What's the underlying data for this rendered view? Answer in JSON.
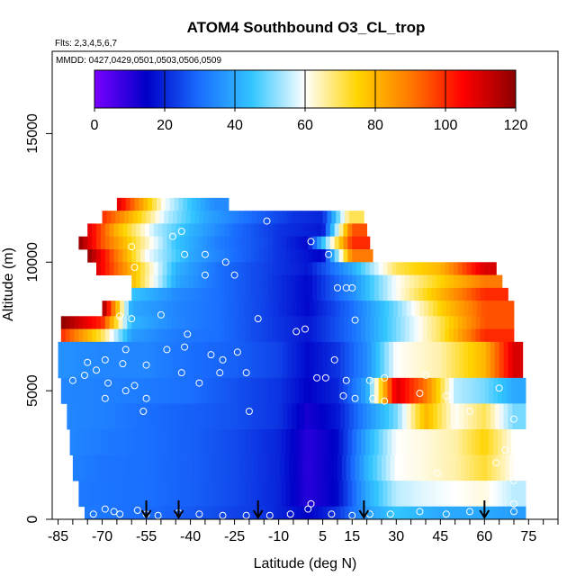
{
  "chart_data": {
    "type": "heatmap",
    "title": "ATOM4 Southbound O3_CL_trop",
    "flights_label": "Flts: 2,3,4,5,6,7",
    "dates_label": "MMDD: 0427,0429,0501,0503,0506,0509",
    "xlabel": "Latitude (deg N)",
    "ylabel": "Altitude (m)",
    "xlim": [
      -87,
      85
    ],
    "ylim": [
      0,
      18200
    ],
    "x_ticks": [
      -85,
      -70,
      -55,
      -40,
      -25,
      -10,
      5,
      15,
      30,
      45,
      60,
      75
    ],
    "y_ticks": [
      0,
      5000,
      10000,
      15000
    ],
    "colorbar": {
      "min": 0,
      "max": 120,
      "ticks": [
        0,
        20,
        40,
        60,
        80,
        100,
        120
      ],
      "colors": [
        "#7a00ff",
        "#0000c8",
        "#1a6fff",
        "#33c6ff",
        "#ffffff",
        "#ffd400",
        "#ff7a00",
        "#ff0000",
        "#8b0000"
      ]
    },
    "altitude_bands": [
      {
        "alt": [
          12000,
          12500
        ],
        "lat": [
          -65,
          -27
        ],
        "values": [
          [
            -65,
            110
          ],
          [
            -57,
            85
          ],
          [
            -49,
            60
          ],
          [
            -40,
            45
          ],
          [
            -32,
            35
          ]
        ]
      },
      {
        "alt": [
          11500,
          12000
        ],
        "lat": [
          -70,
          19
        ],
        "values": [
          [
            -70,
            100
          ],
          [
            -60,
            80
          ],
          [
            -48,
            55
          ],
          [
            -35,
            40
          ],
          [
            -20,
            30
          ],
          [
            -5,
            22
          ],
          [
            5,
            20
          ],
          [
            14,
            70
          ]
        ]
      },
      {
        "alt": [
          11000,
          11500
        ],
        "lat": [
          -75,
          20
        ],
        "values": [
          [
            -75,
            110
          ],
          [
            -65,
            80
          ],
          [
            -52,
            55
          ],
          [
            -40,
            42
          ],
          [
            -25,
            30
          ],
          [
            -10,
            22
          ],
          [
            5,
            18
          ],
          [
            15,
            95
          ]
        ]
      },
      {
        "alt": [
          10500,
          11000
        ],
        "lat": [
          -78,
          21
        ],
        "values": [
          [
            -78,
            120
          ],
          [
            -70,
            95
          ],
          [
            -58,
            70
          ],
          [
            -45,
            45
          ],
          [
            -30,
            32
          ],
          [
            -15,
            25
          ],
          [
            0,
            16
          ],
          [
            15,
            100
          ]
        ]
      },
      {
        "alt": [
          10000,
          10500
        ],
        "lat": [
          -75,
          22
        ],
        "values": [
          [
            -75,
            120
          ],
          [
            -65,
            90
          ],
          [
            -55,
            60
          ],
          [
            -40,
            40
          ],
          [
            -25,
            30
          ],
          [
            -10,
            22
          ],
          [
            5,
            15
          ],
          [
            15,
            90
          ]
        ]
      },
      {
        "alt": [
          9500,
          10000
        ],
        "lat": [
          -72,
          64
        ],
        "values": [
          [
            -72,
            110
          ],
          [
            -60,
            80
          ],
          [
            -45,
            42
          ],
          [
            -30,
            30
          ],
          [
            -15,
            24
          ],
          [
            0,
            18
          ],
          [
            15,
            40
          ],
          [
            30,
            70
          ],
          [
            45,
            80
          ],
          [
            60,
            110
          ]
        ]
      },
      {
        "alt": [
          9000,
          9500
        ],
        "lat": [
          -60,
          66
        ],
        "values": [
          [
            -60,
            80
          ],
          [
            -45,
            40
          ],
          [
            -30,
            30
          ],
          [
            -15,
            24
          ],
          [
            0,
            16
          ],
          [
            15,
            35
          ],
          [
            30,
            60
          ],
          [
            45,
            75
          ],
          [
            60,
            90
          ]
        ]
      },
      {
        "alt": [
          8500,
          9000
        ],
        "lat": [
          -60,
          68
        ],
        "values": [
          [
            -60,
            45
          ],
          [
            -45,
            35
          ],
          [
            -30,
            30
          ],
          [
            -15,
            24
          ],
          [
            0,
            16
          ],
          [
            15,
            35
          ],
          [
            30,
            60
          ],
          [
            45,
            80
          ],
          [
            60,
            100
          ]
        ]
      },
      {
        "alt": [
          7900,
          8500
        ],
        "lat": [
          -70,
          70
        ],
        "values": [
          [
            -70,
            120
          ],
          [
            -60,
            40
          ],
          [
            -45,
            34
          ],
          [
            -30,
            30
          ],
          [
            -15,
            24
          ],
          [
            0,
            16
          ],
          [
            15,
            30
          ],
          [
            30,
            50
          ],
          [
            45,
            75
          ],
          [
            60,
            95
          ]
        ]
      },
      {
        "alt": [
          7400,
          7900
        ],
        "lat": [
          -84,
          70
        ],
        "values": [
          [
            -84,
            120
          ],
          [
            -70,
            100
          ],
          [
            -60,
            42
          ],
          [
            -45,
            34
          ],
          [
            -30,
            30
          ],
          [
            -15,
            24
          ],
          [
            0,
            18
          ],
          [
            15,
            30
          ],
          [
            30,
            50
          ],
          [
            45,
            70
          ],
          [
            60,
            95
          ]
        ]
      },
      {
        "alt": [
          6900,
          7400
        ],
        "lat": [
          -84,
          70
        ],
        "values": [
          [
            -84,
            100
          ],
          [
            -70,
            70
          ],
          [
            -60,
            38
          ],
          [
            -45,
            32
          ],
          [
            -30,
            30
          ],
          [
            -15,
            24
          ],
          [
            0,
            18
          ],
          [
            15,
            30
          ],
          [
            30,
            50
          ],
          [
            45,
            70
          ],
          [
            60,
            100
          ]
        ]
      },
      {
        "alt": [
          5500,
          6900
        ],
        "lat": [
          -85,
          73
        ],
        "values": [
          [
            -85,
            36
          ],
          [
            -70,
            34
          ],
          [
            -55,
            34
          ],
          [
            -40,
            30
          ],
          [
            -25,
            28
          ],
          [
            -10,
            24
          ],
          [
            0,
            16
          ],
          [
            10,
            22
          ],
          [
            20,
            35
          ],
          [
            30,
            60
          ],
          [
            45,
            65
          ],
          [
            60,
            80
          ],
          [
            70,
            110
          ]
        ]
      },
      {
        "alt": [
          4500,
          5500
        ],
        "lat": [
          -84,
          74
        ],
        "values": [
          [
            -84,
            34
          ],
          [
            -70,
            33
          ],
          [
            -55,
            32
          ],
          [
            -40,
            30
          ],
          [
            -25,
            26
          ],
          [
            -10,
            22
          ],
          [
            0,
            15
          ],
          [
            10,
            20
          ],
          [
            20,
            40
          ],
          [
            30,
            110
          ],
          [
            40,
            90
          ],
          [
            50,
            55
          ],
          [
            60,
            50
          ],
          [
            70,
            40
          ]
        ]
      },
      {
        "alt": [
          3500,
          4500
        ],
        "lat": [
          -82,
          74
        ],
        "values": [
          [
            -82,
            34
          ],
          [
            -70,
            33
          ],
          [
            -55,
            30
          ],
          [
            -40,
            28
          ],
          [
            -25,
            26
          ],
          [
            -10,
            22
          ],
          [
            0,
            12
          ],
          [
            10,
            18
          ],
          [
            20,
            35
          ],
          [
            30,
            50
          ],
          [
            40,
            80
          ],
          [
            50,
            60
          ],
          [
            60,
            70
          ],
          [
            70,
            50
          ]
        ]
      },
      {
        "alt": [
          2500,
          3500
        ],
        "lat": [
          -81,
          74
        ],
        "values": [
          [
            -81,
            34
          ],
          [
            -70,
            32
          ],
          [
            -55,
            30
          ],
          [
            -40,
            28
          ],
          [
            -25,
            25
          ],
          [
            -10,
            20
          ],
          [
            0,
            10
          ],
          [
            10,
            16
          ],
          [
            20,
            40
          ],
          [
            30,
            60
          ],
          [
            40,
            62
          ],
          [
            50,
            65
          ],
          [
            60,
            75
          ],
          [
            70,
            60
          ]
        ]
      },
      {
        "alt": [
          1500,
          2500
        ],
        "lat": [
          -80,
          74
        ],
        "values": [
          [
            -80,
            33
          ],
          [
            -70,
            31
          ],
          [
            -55,
            30
          ],
          [
            -40,
            28
          ],
          [
            -25,
            25
          ],
          [
            -10,
            20
          ],
          [
            0,
            10
          ],
          [
            10,
            16
          ],
          [
            20,
            42
          ],
          [
            30,
            60
          ],
          [
            40,
            62
          ],
          [
            50,
            65
          ],
          [
            60,
            72
          ],
          [
            70,
            60
          ]
        ]
      },
      {
        "alt": [
          500,
          1500
        ],
        "lat": [
          -78,
          74
        ],
        "values": [
          [
            -78,
            32
          ],
          [
            -70,
            31
          ],
          [
            -55,
            30
          ],
          [
            -40,
            28
          ],
          [
            -25,
            25
          ],
          [
            -10,
            20
          ],
          [
            0,
            10
          ],
          [
            10,
            16
          ],
          [
            20,
            40
          ],
          [
            30,
            55
          ],
          [
            40,
            58
          ],
          [
            50,
            60
          ],
          [
            60,
            62
          ],
          [
            70,
            55
          ]
        ]
      },
      {
        "alt": [
          0,
          500
        ],
        "lat": [
          -76,
          74
        ],
        "values": [
          [
            -76,
            32
          ],
          [
            -60,
            30
          ],
          [
            -45,
            28
          ],
          [
            -30,
            25
          ],
          [
            -15,
            22
          ],
          [
            0,
            15
          ],
          [
            10,
            22
          ],
          [
            20,
            38
          ],
          [
            30,
            45
          ],
          [
            45,
            40
          ],
          [
            60,
            40
          ],
          [
            70,
            38
          ]
        ]
      }
    ],
    "samples": [
      [
        -22,
        12300
      ],
      [
        -21,
        12300
      ],
      [
        -14,
        11600
      ],
      [
        -43,
        11200
      ],
      [
        -46,
        11000
      ],
      [
        -60,
        10600
      ],
      [
        -35,
        10300
      ],
      [
        -42,
        10300
      ],
      [
        -28,
        10000
      ],
      [
        -59,
        9800
      ],
      [
        1,
        10800
      ],
      [
        7,
        10300
      ],
      [
        -35,
        9500
      ],
      [
        -25,
        9500
      ],
      [
        10,
        9000
      ],
      [
        13,
        9000
      ],
      [
        15,
        9000
      ],
      [
        -50,
        7950
      ],
      [
        -64,
        7900
      ],
      [
        -60,
        7800
      ],
      [
        -17,
        7800
      ],
      [
        16,
        7750
      ],
      [
        -1,
        7400
      ],
      [
        -4,
        7300
      ],
      [
        -41,
        7200
      ],
      [
        -62,
        6600
      ],
      [
        -42,
        6700
      ],
      [
        -48,
        6600
      ],
      [
        -24,
        6500
      ],
      [
        -33,
        6400
      ],
      [
        -29,
        6200
      ],
      [
        -69,
        6200
      ],
      [
        -75,
        6100
      ],
      [
        -63,
        6050
      ],
      [
        -55,
        6000
      ],
      [
        -72,
        5800
      ],
      [
        -43,
        5700
      ],
      [
        -30,
        5700
      ],
      [
        -21,
        5700
      ],
      [
        9,
        6200
      ],
      [
        6,
        5500
      ],
      [
        13,
        5400
      ],
      [
        3,
        5500
      ],
      [
        -76,
        5600
      ],
      [
        -68,
        5300
      ],
      [
        -80,
        5400
      ],
      [
        -37,
        5300
      ],
      [
        -59,
        5200
      ],
      [
        -62,
        5000
      ],
      [
        -55,
        4700
      ],
      [
        -69,
        4700
      ],
      [
        -56,
        4200
      ],
      [
        -20,
        4200
      ],
      [
        21,
        5400
      ],
      [
        26,
        5500
      ],
      [
        40,
        5600
      ],
      [
        12,
        4800
      ],
      [
        16,
        4700
      ],
      [
        22,
        4700
      ],
      [
        26,
        4600
      ],
      [
        38,
        4900
      ],
      [
        47,
        4800
      ],
      [
        65,
        5100
      ],
      [
        55,
        4200
      ],
      [
        70,
        3900
      ],
      [
        70,
        3100
      ],
      [
        67,
        2700
      ],
      [
        64,
        2200
      ],
      [
        70,
        1500
      ],
      [
        44,
        1800
      ],
      [
        -73,
        200
      ],
      [
        -64,
        200
      ],
      [
        -55,
        200
      ],
      [
        -51,
        150
      ],
      [
        -44,
        250
      ],
      [
        -37,
        200
      ],
      [
        -29,
        150
      ],
      [
        -21,
        150
      ],
      [
        -13,
        150
      ],
      [
        -6,
        200
      ],
      [
        1,
        600
      ],
      [
        8,
        200
      ],
      [
        15,
        150
      ],
      [
        21,
        200
      ],
      [
        28,
        200
      ],
      [
        38,
        300
      ],
      [
        47,
        200
      ],
      [
        55,
        300
      ],
      [
        70,
        600
      ],
      [
        70,
        300
      ],
      [
        -66,
        300
      ],
      [
        -69,
        400
      ],
      [
        -58,
        350
      ],
      [
        0,
        400
      ]
    ],
    "arrows": [
      -55,
      -44,
      -17,
      19,
      60
    ]
  }
}
